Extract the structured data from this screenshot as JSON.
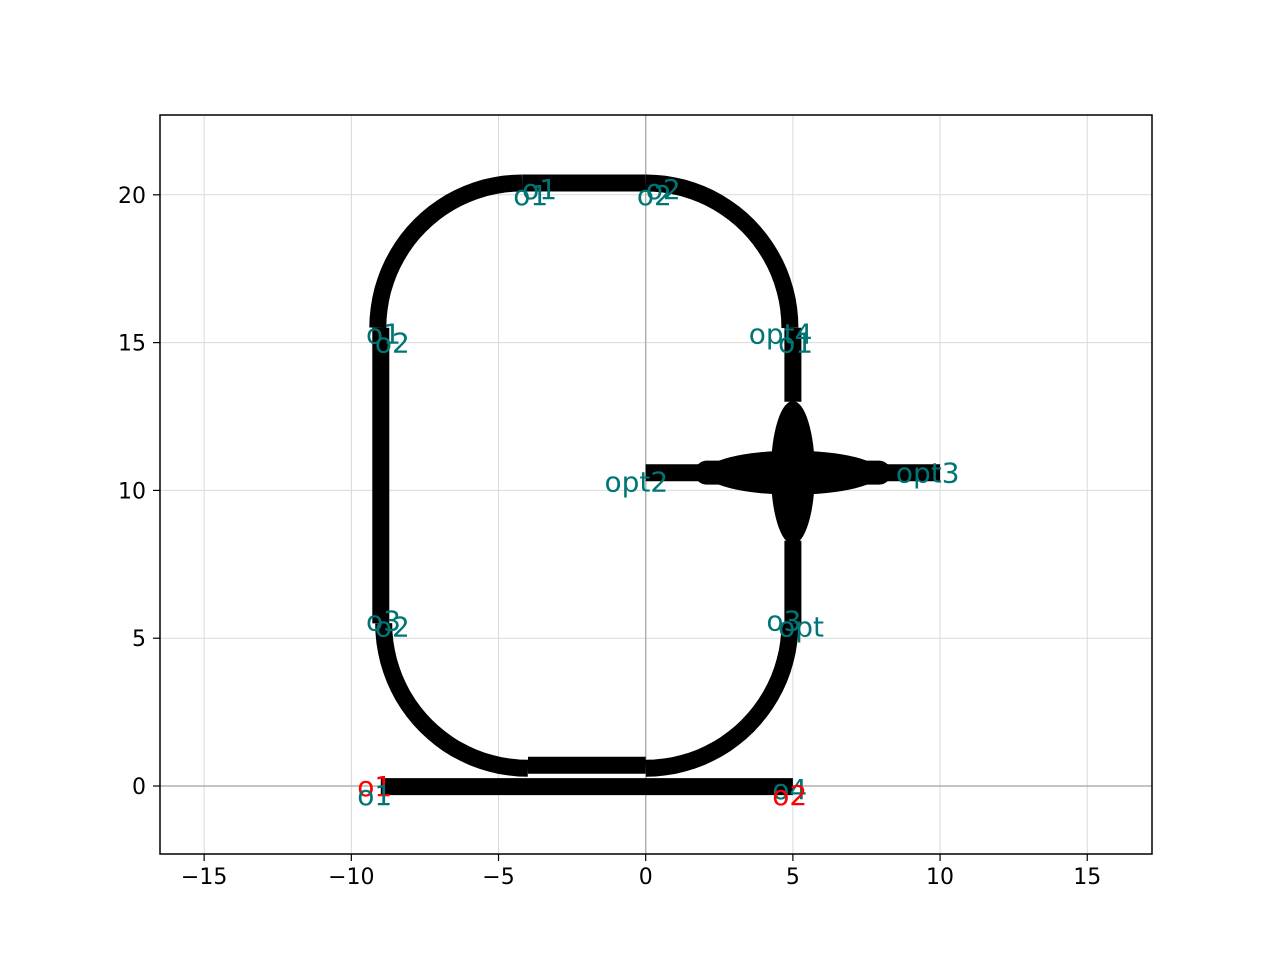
{
  "chart_data": {
    "type": "diagram",
    "title": "",
    "xlabel": "",
    "ylabel": "",
    "xlim": [
      -16.5,
      17.2
    ],
    "ylim": [
      -2.3,
      22.7
    ],
    "grid": true,
    "x_ticks": [
      -15,
      -10,
      -5,
      0,
      5,
      10,
      15
    ],
    "x_tick_labels": [
      "−15",
      "−10",
      "−5",
      "0",
      "5",
      "10",
      "15"
    ],
    "y_ticks": [
      0,
      5,
      10,
      15,
      20
    ],
    "y_tick_labels": [
      "0",
      "5",
      "10",
      "15",
      "20"
    ],
    "colors": {
      "waveguide": "#000000",
      "port_label": "#007575",
      "port_label_red": "#ff0000",
      "grid": "#d9d9d9",
      "zero_axis": "#b0b0b0"
    },
    "waveguides": [
      {
        "name": "bus",
        "points": [
          [
            -9,
            -0.02
          ],
          [
            5,
            -0.02
          ]
        ]
      },
      {
        "name": "ring-bottom",
        "points": [
          [
            -4,
            0.7
          ],
          [
            0,
            0.7
          ]
        ]
      },
      {
        "name": "ring-left",
        "points": [
          [
            -9,
            15.5
          ],
          [
            -9,
            5.5
          ]
        ]
      },
      {
        "name": "ring-top",
        "points": [
          [
            -4.2,
            20.4
          ],
          [
            0,
            20.4
          ]
        ]
      },
      {
        "name": "ring-right-upper",
        "points": [
          [
            5,
            15.5
          ],
          [
            5,
            13
          ]
        ]
      },
      {
        "name": "ring-right-lower",
        "points": [
          [
            5,
            8.3
          ],
          [
            5,
            5.5
          ]
        ]
      },
      {
        "name": "arm-left",
        "points": [
          [
            0,
            10.6
          ],
          [
            2,
            10.6
          ]
        ]
      },
      {
        "name": "arm-right",
        "points": [
          [
            8,
            10.6
          ],
          [
            10,
            10.6
          ]
        ]
      }
    ],
    "bends": [
      {
        "name": "bend-bottom-left",
        "center": [
          -4,
          5.5
        ],
        "radius": 4.9,
        "start_deg": 180,
        "end_deg": 270
      },
      {
        "name": "bend-bottom-right",
        "center": [
          0,
          5.5
        ],
        "radius": 4.9,
        "start_deg": 270,
        "end_deg": 360
      },
      {
        "name": "bend-top-left",
        "center": [
          -4.2,
          15.5
        ],
        "radius": 4.9,
        "start_deg": 90,
        "end_deg": 180
      },
      {
        "name": "bend-top-right",
        "center": [
          0,
          15.5
        ],
        "radius": 4.9,
        "start_deg": 0,
        "end_deg": 90
      }
    ],
    "crossing": {
      "center": [
        5,
        10.6
      ],
      "h_half_length": 3,
      "v_half_length": 2.3
    },
    "port_labels": [
      {
        "text": "o1",
        "x": -4.5,
        "y": 20.0,
        "color": "teal"
      },
      {
        "text": "o1",
        "x": -4.2,
        "y": 20.2,
        "color": "teal"
      },
      {
        "text": "o2",
        "x": -0.3,
        "y": 20.0,
        "color": "teal"
      },
      {
        "text": "o2",
        "x": 0.0,
        "y": 20.2,
        "color": "teal"
      },
      {
        "text": "o1",
        "x": -9.5,
        "y": 15.3,
        "color": "teal"
      },
      {
        "text": "o2",
        "x": -9.2,
        "y": 15.0,
        "color": "teal"
      },
      {
        "text": "opt4",
        "x": 3.5,
        "y": 15.3,
        "color": "teal"
      },
      {
        "text": "o1",
        "x": 4.5,
        "y": 15.0,
        "color": "teal"
      },
      {
        "text": "opt2",
        "x": -1.4,
        "y": 10.3,
        "color": "teal"
      },
      {
        "text": "opt3",
        "x": 8.5,
        "y": 10.6,
        "color": "teal"
      },
      {
        "text": "o3",
        "x": -9.5,
        "y": 5.6,
        "color": "teal"
      },
      {
        "text": "o2",
        "x": -9.2,
        "y": 5.4,
        "color": "teal"
      },
      {
        "text": "o3",
        "x": 4.1,
        "y": 5.6,
        "color": "teal"
      },
      {
        "text": "opt",
        "x": 4.5,
        "y": 5.4,
        "color": "teal"
      },
      {
        "text": "o1",
        "x": -9.8,
        "y": 0.0,
        "color": "red"
      },
      {
        "text": "o1",
        "x": -9.8,
        "y": -0.3,
        "color": "teal"
      },
      {
        "text": "o4",
        "x": 4.3,
        "y": -0.1,
        "color": "teal"
      },
      {
        "text": "o2",
        "x": 4.3,
        "y": -0.3,
        "color": "red"
      }
    ]
  }
}
